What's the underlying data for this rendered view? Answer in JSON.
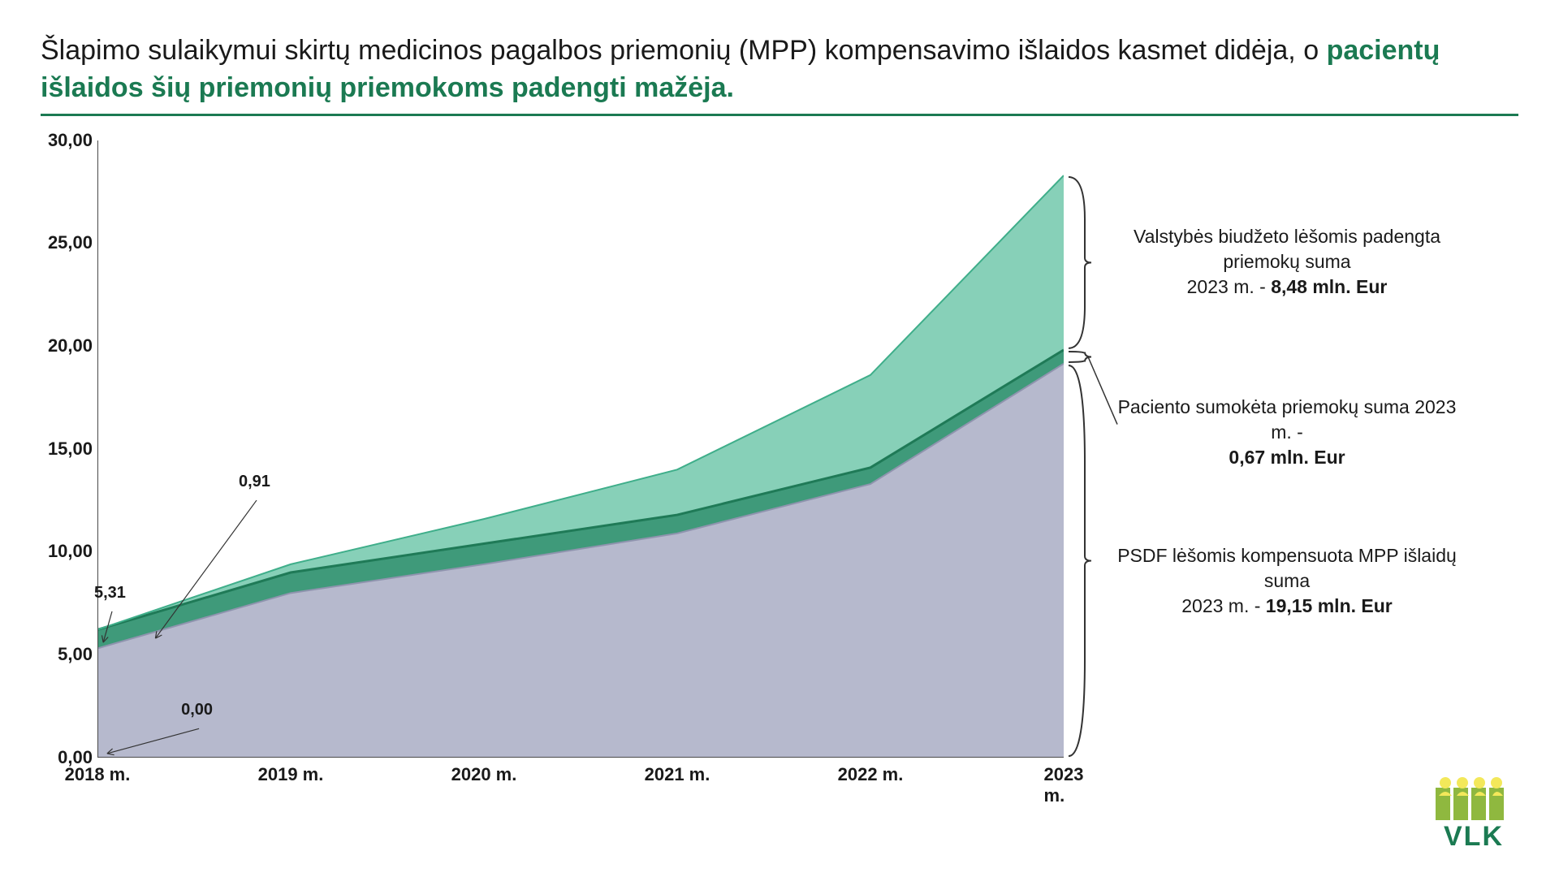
{
  "title": {
    "line1_normal": "Šlapimo sulaikymui skirtų medicinos pagalbos priemonių (MPP) kompensavimo išlaidos kasmet didėja, o ",
    "line1_bold": "pacientų išlaidos šių priemonių priemokoms padengti mažėja.",
    "normal_color": "#1a1a1a",
    "bold_color": "#1b7a52",
    "underline_color": "#1b7a52",
    "fontsize": 34
  },
  "chart": {
    "type": "stacked-area",
    "x_categories": [
      "2018 m.",
      "2019 m.",
      "2020 m.",
      "2021 m.",
      "2022 m.",
      "2023 m."
    ],
    "ylim": [
      0,
      30
    ],
    "ytick_step": 5,
    "ylabels": [
      "0,00",
      "5,00",
      "10,00",
      "15,00",
      "20,00",
      "25,00",
      "30,00"
    ],
    "series": {
      "psdf": {
        "values": [
          5.31,
          8.0,
          9.4,
          10.9,
          13.3,
          19.15
        ],
        "fill": "#a9adc4",
        "fill_opacity": 0.85
      },
      "patient": {
        "values": [
          0.91,
          1.0,
          1.0,
          0.9,
          0.8,
          0.67
        ],
        "fill": "#2a8f6c",
        "fill_opacity": 0.9
      },
      "state": {
        "values": [
          0.0,
          0.4,
          1.2,
          2.2,
          4.5,
          8.48
        ],
        "fill": "#5fc0a0",
        "fill_opacity": 0.75
      }
    },
    "axis_color": "#4a4a4a",
    "axis_width": 2,
    "background": "#ffffff",
    "tick_fontsize": 22,
    "point_labels": [
      {
        "text": "5,31",
        "x_index": 0,
        "y_value": 7.9,
        "line_to": {
          "x_index": 0.03,
          "y_value": 5.6
        }
      },
      {
        "text": "0,91",
        "x_index": 1.0,
        "y_value": 13.3,
        "dx": -60,
        "line_to": {
          "x_index": 0.3,
          "y_value": 5.8
        }
      },
      {
        "text": "0,00",
        "x_index": 0.45,
        "y_value": 2.2,
        "line_to": {
          "x_index": 0.05,
          "y_value": 0.2
        }
      }
    ]
  },
  "annotations": {
    "state": {
      "text": "Valstybės biudžeto lėšomis padengta priemokų suma",
      "year": "2023 m. - ",
      "value": "8,48 mln. Eur",
      "brace_y_range": [
        19.82,
        28.3
      ]
    },
    "patient": {
      "text": "Paciento sumokėta priemokų suma 2023 m. - ",
      "value": "0,67 mln. Eur",
      "brace_y_range": [
        19.15,
        19.82
      ]
    },
    "psdf": {
      "text": "PSDF lėšomis kompensuota MPP išlaidų suma",
      "year": "2023 m. - ",
      "value": "19,15 mln. Eur",
      "brace_y_range": [
        0,
        19.15
      ]
    }
  },
  "logo": {
    "text": "VLK",
    "bar_color": "#8fb83f",
    "people_color": "#f3e85a",
    "text_color": "#1b7a52"
  }
}
